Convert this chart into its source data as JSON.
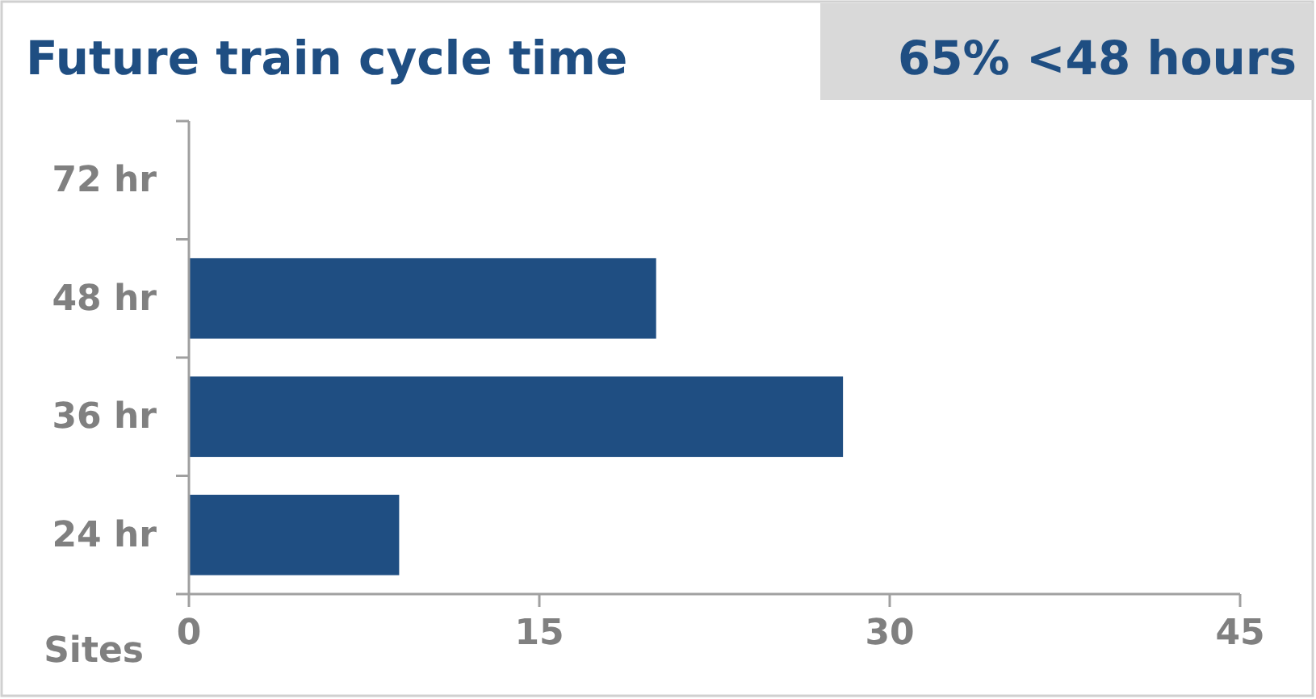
{
  "chart_data": {
    "type": "bar",
    "orientation": "horizontal",
    "title": "Future train cycle time",
    "annotations": [
      "65% <48 hours"
    ],
    "xlabel": "Sites",
    "categories": [
      "72 hr",
      "48 hr",
      "36 hr",
      "24 hr"
    ],
    "values": [
      0,
      20,
      28,
      9
    ],
    "color": "#1f4e82",
    "xlim": [
      0,
      45
    ],
    "xticks": [
      0,
      15,
      30,
      45
    ]
  }
}
